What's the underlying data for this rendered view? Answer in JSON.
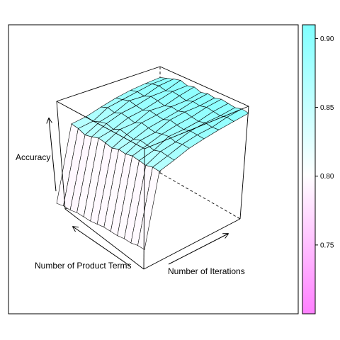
{
  "chart_data": {
    "type": "wireframe-surface-3d",
    "title": "",
    "xlabel": "Number of Product Terms",
    "ylabel": "Number of Iterations",
    "zlabel": "Accuracy",
    "zlim": [
      0.7,
      0.91
    ],
    "colorbar": {
      "ticks": [
        0.75,
        0.8,
        0.85,
        0.9
      ],
      "tick_labels": [
        "0.75",
        "0.80",
        "0.85",
        "0.90"
      ],
      "range": [
        0.7,
        0.91
      ],
      "low_color": "#ff80ff",
      "mid_color": "#ffffff",
      "high_color": "#80ffff"
    },
    "grid": false,
    "legend": "right",
    "surface": {
      "rows_product_terms": 8,
      "cols_iterations": 14,
      "z": [
        [
          0.732,
          0.734,
          0.733,
          0.735,
          0.734,
          0.733,
          0.734,
          0.735,
          0.734,
          0.733,
          0.734,
          0.733,
          0.735,
          0.734
        ],
        [
          0.862,
          0.86,
          0.855,
          0.858,
          0.862,
          0.86,
          0.857,
          0.861,
          0.859,
          0.862,
          0.86,
          0.858,
          0.861,
          0.86
        ],
        [
          0.866,
          0.864,
          0.869,
          0.872,
          0.868,
          0.874,
          0.871,
          0.869,
          0.873,
          0.871,
          0.868,
          0.872,
          0.87,
          0.869
        ],
        [
          0.874,
          0.879,
          0.876,
          0.881,
          0.879,
          0.876,
          0.882,
          0.879,
          0.877,
          0.88,
          0.882,
          0.878,
          0.88,
          0.879
        ],
        [
          0.881,
          0.884,
          0.888,
          0.885,
          0.883,
          0.888,
          0.886,
          0.884,
          0.889,
          0.886,
          0.884,
          0.887,
          0.886,
          0.885
        ],
        [
          0.886,
          0.889,
          0.887,
          0.892,
          0.89,
          0.887,
          0.891,
          0.889,
          0.893,
          0.89,
          0.888,
          0.891,
          0.889,
          0.89
        ],
        [
          0.889,
          0.894,
          0.896,
          0.893,
          0.897,
          0.895,
          0.892,
          0.896,
          0.894,
          0.897,
          0.895,
          0.893,
          0.896,
          0.894
        ],
        [
          0.891,
          0.895,
          0.899,
          0.902,
          0.898,
          0.901,
          0.897,
          0.9,
          0.898,
          0.901,
          0.899,
          0.897,
          0.9,
          0.898
        ]
      ]
    }
  }
}
